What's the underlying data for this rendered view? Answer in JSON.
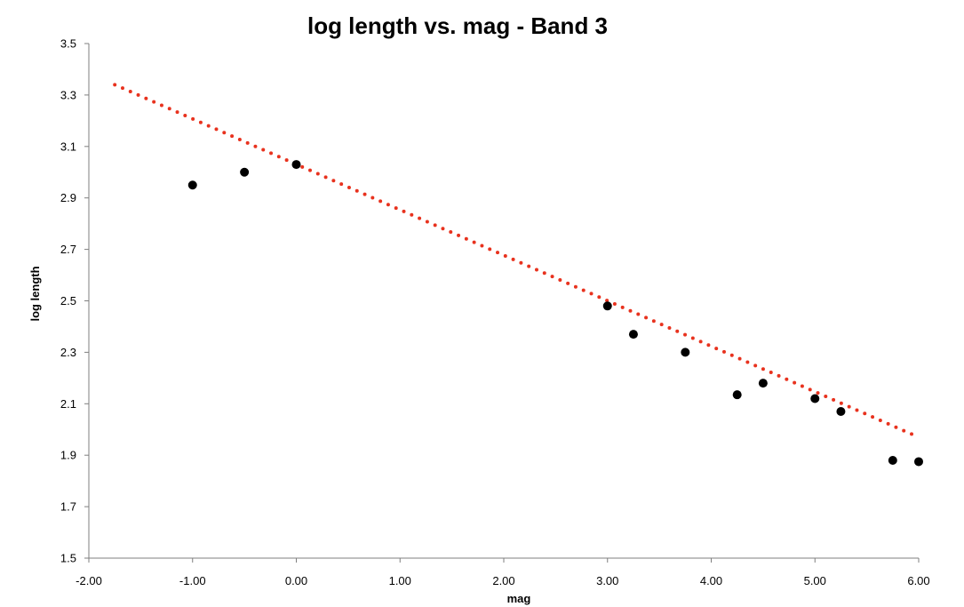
{
  "chart_data": {
    "type": "scatter",
    "title": "log length vs. mag - Band 3",
    "xlabel": "mag",
    "ylabel": "log length",
    "xlim": [
      -2.0,
      6.0
    ],
    "ylim": [
      1.5,
      3.5
    ],
    "x_ticks": [
      "-2.00",
      "-1.00",
      "0.00",
      "1.00",
      "2.00",
      "3.00",
      "4.00",
      "5.00",
      "6.00"
    ],
    "y_ticks": [
      "1.5",
      "1.7",
      "1.9",
      "2.1",
      "2.3",
      "2.5",
      "2.7",
      "2.9",
      "3.1",
      "3.3",
      "3.5"
    ],
    "grid": false,
    "series": [
      {
        "type": "scatter",
        "color": "#000000",
        "points": [
          {
            "x": -1.0,
            "y": 2.95
          },
          {
            "x": -0.5,
            "y": 3.0
          },
          {
            "x": 0.0,
            "y": 3.03
          },
          {
            "x": 3.0,
            "y": 2.48
          },
          {
            "x": 3.25,
            "y": 2.37
          },
          {
            "x": 3.75,
            "y": 2.3
          },
          {
            "x": 4.25,
            "y": 2.135
          },
          {
            "x": 4.5,
            "y": 2.18
          },
          {
            "x": 5.0,
            "y": 2.12
          },
          {
            "x": 5.25,
            "y": 2.07
          },
          {
            "x": 5.75,
            "y": 1.88
          },
          {
            "x": 6.0,
            "y": 1.875
          }
        ]
      },
      {
        "type": "trendline",
        "style": "dotted",
        "color": "#e8321e",
        "x_start": -1.75,
        "y_start": 3.34,
        "x_end": 6.0,
        "y_end": 1.97
      }
    ]
  }
}
